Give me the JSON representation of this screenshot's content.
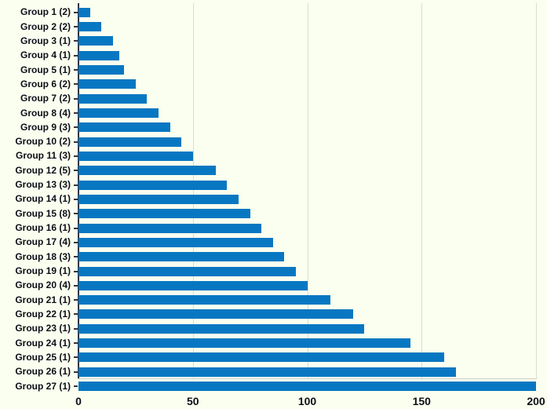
{
  "chart_data": {
    "type": "bar",
    "orientation": "horizontal",
    "title": "",
    "xlabel": "",
    "ylabel": "",
    "categories": [
      "Group 1 (2)",
      "Group 2 (2)",
      "Group 3 (1)",
      "Group 4 (1)",
      "Group 5 (1)",
      "Group 6 (2)",
      "Group 7 (2)",
      "Group 8 (4)",
      "Group 9 (3)",
      "Group 10 (2)",
      "Group 11 (3)",
      "Group 12 (5)",
      "Group 13 (3)",
      "Group 14 (1)",
      "Group 15 (8)",
      "Group 16 (1)",
      "Group 17 (4)",
      "Group 18 (3)",
      "Group 19 (1)",
      "Group 20 (4)",
      "Group 21 (1)",
      "Group 22 (1)",
      "Group 23 (1)",
      "Group 24 (1)",
      "Group 25 (1)",
      "Group 26 (1)",
      "Group 27 (1)"
    ],
    "values": [
      5,
      10,
      15,
      18,
      20,
      25,
      30,
      35,
      40,
      45,
      50,
      60,
      65,
      70,
      75,
      80,
      85,
      90,
      95,
      100,
      110,
      120,
      125,
      145,
      160,
      165,
      200
    ],
    "xlim": [
      0,
      200
    ],
    "x_ticks": [
      0,
      50,
      100,
      150,
      200
    ],
    "x_tick_labels": [
      "0",
      "50",
      "100",
      "150",
      "200"
    ],
    "grid": "vertical-only",
    "legend": "none",
    "colors": {
      "bar": "#0877c2",
      "background": "#fafff0",
      "gridline": "#dcdbd0",
      "axis_line": "#35353d",
      "baseline": "#cfcec4",
      "text": "#0e0e16"
    }
  }
}
